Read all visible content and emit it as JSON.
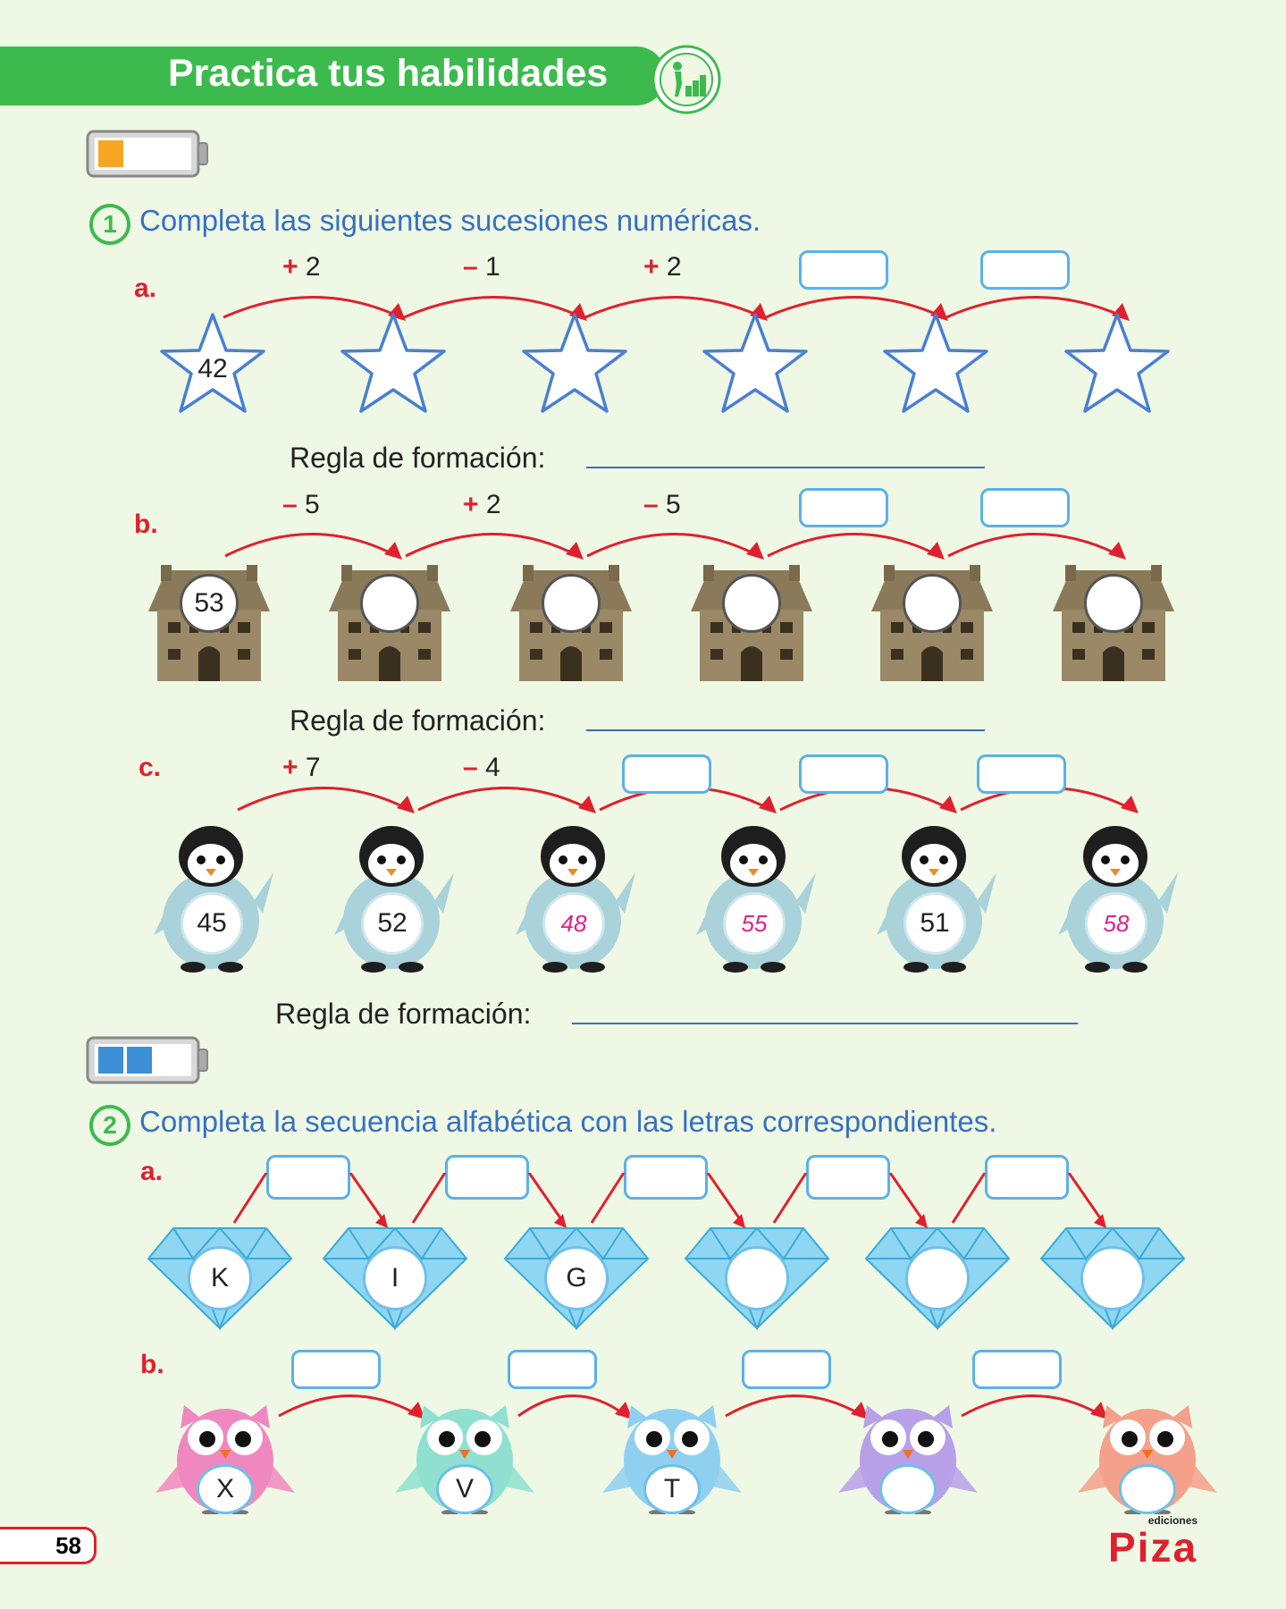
{
  "header": {
    "title": "Practica tus habilidades",
    "badge_icon": "climbing-stairs-icon"
  },
  "colors": {
    "green": "#3dba4e",
    "blue_text": "#3870c0",
    "red": "#e0202e",
    "pink": "#e0208a"
  },
  "section1": {
    "number": "1",
    "instruction": "Completa las siguientes sucesiones numéricas.",
    "rule_label": "Regla de formación:",
    "a": {
      "label": "a.",
      "ops": [
        {
          "sign": "+",
          "num": "2"
        },
        {
          "sign": "–",
          "num": "1"
        },
        {
          "sign": "+",
          "num": "2"
        }
      ],
      "values": [
        "42",
        "",
        "",
        "",
        "",
        ""
      ]
    },
    "b": {
      "label": "b.",
      "ops": [
        {
          "sign": "–",
          "num": "5"
        },
        {
          "sign": "+",
          "num": "2"
        },
        {
          "sign": "–",
          "num": "5"
        }
      ],
      "values": [
        "53",
        "",
        "",
        "",
        "",
        ""
      ]
    },
    "c": {
      "label": "c.",
      "ops": [
        {
          "sign": "+",
          "num": "7"
        },
        {
          "sign": "–",
          "num": "4"
        }
      ],
      "values": [
        "45",
        "52",
        "48",
        "55",
        "51",
        "58"
      ]
    }
  },
  "section2": {
    "number": "2",
    "instruction": "Completa la secuencia alfabética con las letras correspondientes.",
    "a": {
      "label": "a.",
      "values": [
        "K",
        "I",
        "G",
        "",
        "",
        ""
      ]
    },
    "b": {
      "label": "b.",
      "values": [
        "X",
        "V",
        "T",
        "",
        ""
      ]
    }
  },
  "footer": {
    "page_number": "58",
    "brand": "Piza",
    "brand_sub": "ediciones"
  }
}
